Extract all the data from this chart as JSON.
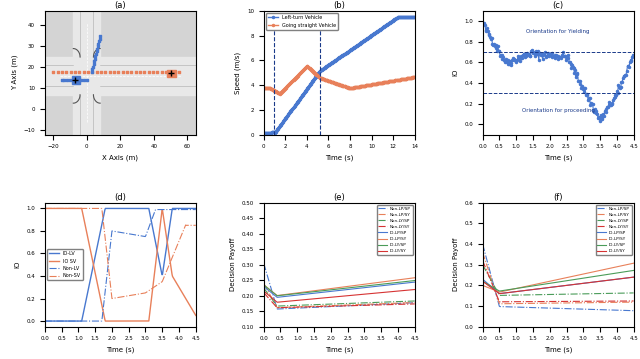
{
  "fig_size": [
    6.4,
    3.59
  ],
  "dpi": 100,
  "panel_labels": [
    "(a)",
    "(b)",
    "(c)",
    "(d)",
    "(e)",
    "(f)"
  ],
  "panel_b": {
    "title": "",
    "xlabel": "Time (s)",
    "ylabel": "Speed (m/s)",
    "xlim": [
      0,
      14
    ],
    "ylim": [
      0,
      10
    ],
    "vlines": [
      1.0,
      5.2
    ],
    "legend": [
      "Left-turn Vehicle",
      "Going straight Vehicle"
    ],
    "colors": [
      "#4878cf",
      "#e8805a"
    ]
  },
  "panel_c": {
    "xlabel": "Time (s)",
    "ylabel": "IO",
    "xlim": [
      0,
      4.5
    ],
    "ylim": [
      -0.1,
      1.1
    ],
    "hlines": [
      0.7,
      0.3
    ],
    "text_yield": "Orientation for Yielding",
    "text_proceed": "Orientation for proceeding",
    "color": "#4878cf"
  },
  "panel_d": {
    "xlabel": "Time (s)",
    "ylabel": "IO",
    "xlim": [
      0,
      4.5
    ],
    "ylim": [
      -0.05,
      1.05
    ],
    "legend": [
      "IO-LV",
      "IO SV",
      "Non-LV",
      "Non-SV"
    ],
    "colors": [
      "#4878cf",
      "#e8805a",
      "#4878cf",
      "#e8805a"
    ],
    "styles": [
      "-",
      "-",
      "-.",
      "-."
    ]
  },
  "panel_e": {
    "xlabel": "Time (s)",
    "ylabel": "Decision Payoff",
    "xlim": [
      0,
      4.5
    ],
    "ylim": [
      0.1,
      0.5
    ],
    "yticks": [
      0.1,
      0.15,
      0.2,
      0.25,
      0.3,
      0.35,
      0.4,
      0.45,
      0.5
    ],
    "legend": [
      "Non-LP/SP",
      "Non-LP/SY",
      "Non-LY/SP",
      "Non-LY/SY",
      "IO-LP/SP",
      "IO-LP/SY",
      "IO-LY/SP",
      "IO-LY/SY"
    ],
    "colors": [
      "#4878cf",
      "#e8805a",
      "#4a9c59",
      "#d63333",
      "#4878cf",
      "#e8805a",
      "#4a9c59",
      "#d63333"
    ],
    "styles": [
      "-.",
      "-.",
      "-.",
      "-.",
      "-",
      "-",
      "-",
      "-"
    ]
  },
  "panel_f": {
    "xlabel": "Time (s)",
    "ylabel": "Decision Payoff",
    "xlim": [
      0,
      4.5
    ],
    "ylim": [
      0.0,
      0.6
    ],
    "yticks": [
      0.0,
      0.1,
      0.2,
      0.3,
      0.4,
      0.5,
      0.6
    ],
    "legend": [
      "Non-LP/SP",
      "Non-LP/SY",
      "Non-LY/SP",
      "Non-LY/SY",
      "IO-LP/SP",
      "IO-LP/SY",
      "IO-LY/SP",
      "IO-LY/SY"
    ],
    "colors": [
      "#4878cf",
      "#e8805a",
      "#4a9c59",
      "#d63333",
      "#4878cf",
      "#e8805a",
      "#4a9c59",
      "#d63333"
    ],
    "styles": [
      "-.",
      "-.",
      "-.",
      "-.",
      "-",
      "-",
      "-",
      "-"
    ]
  }
}
